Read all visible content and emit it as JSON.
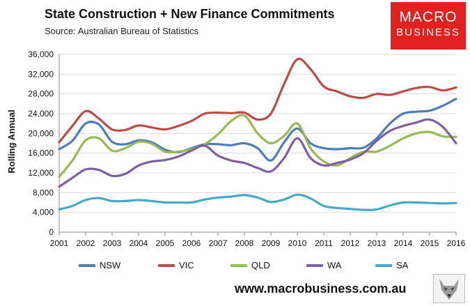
{
  "header": {
    "title": "State Construction + New Finance Commitments",
    "subtitle": "Source: Australian Bureau of Statistics"
  },
  "logo": {
    "line1": "MACRO",
    "line2": "BUSINESS"
  },
  "footer": {
    "website": "www.macrobusiness.com.au"
  },
  "colors": {
    "NSW": "#4a7ebb",
    "VIC": "#be4b48",
    "QLD": "#98b954",
    "WA": "#7d60a0",
    "SA": "#46aac5",
    "logo_bg": "#e0211d"
  },
  "chart_data": {
    "type": "line",
    "title": "State Construction + New Finance Commitments",
    "ylabel": "Rolling Annual",
    "xlabel": "",
    "xlim": [
      2001,
      2016
    ],
    "ylim": [
      0,
      36000
    ],
    "x_ticks": [
      "2001",
      "2002",
      "2003",
      "2004",
      "2005",
      "2006",
      "2007",
      "2008",
      "2009",
      "2010",
      "2011",
      "2012",
      "2013",
      "2014",
      "2015",
      "2016"
    ],
    "y_ticks": [
      "0",
      "4,000",
      "8,000",
      "12,000",
      "16,000",
      "20,000",
      "24,000",
      "28,000",
      "32,000",
      "36,000"
    ],
    "grid": "horizontal",
    "legend": "bottom",
    "x": [
      2001.0,
      2001.5,
      2002.0,
      2002.5,
      2003.0,
      2003.5,
      2004.0,
      2004.5,
      2005.0,
      2005.5,
      2006.0,
      2006.5,
      2007.0,
      2007.5,
      2008.0,
      2008.5,
      2009.0,
      2009.5,
      2010.0,
      2010.5,
      2011.0,
      2011.5,
      2012.0,
      2012.5,
      2013.0,
      2013.5,
      2014.0,
      2014.5,
      2015.0,
      2015.5,
      2016.0
    ],
    "series": [
      {
        "name": "NSW",
        "values": [
          16800,
          18500,
          22000,
          21800,
          18300,
          17800,
          18600,
          18200,
          16700,
          16200,
          17000,
          17800,
          17800,
          17600,
          18000,
          17000,
          14500,
          18200,
          21000,
          18000,
          17000,
          16800,
          17000,
          17100,
          19000,
          22000,
          24000,
          24400,
          24600,
          25600,
          27000
        ]
      },
      {
        "name": "VIC",
        "values": [
          18200,
          21500,
          24500,
          23000,
          20800,
          20700,
          21600,
          21200,
          20800,
          21500,
          22500,
          24000,
          24200,
          24100,
          24200,
          22800,
          24000,
          30000,
          35000,
          33000,
          29500,
          28500,
          27500,
          27200,
          28000,
          27800,
          28500,
          29200,
          29400,
          28700,
          29300
        ]
      },
      {
        "name": "QLD",
        "values": [
          11200,
          14500,
          18600,
          19000,
          16500,
          17000,
          18300,
          17900,
          16300,
          16300,
          16800,
          17800,
          19800,
          22500,
          23600,
          20000,
          18000,
          19500,
          22000,
          17000,
          14300,
          13500,
          15000,
          16300,
          16300,
          17500,
          19000,
          20000,
          20300,
          19400,
          19300
        ]
      },
      {
        "name": "WA",
        "values": [
          9200,
          11000,
          12700,
          12600,
          11400,
          11800,
          13500,
          14300,
          14600,
          15300,
          16500,
          17500,
          15500,
          14500,
          14000,
          13000,
          12300,
          15000,
          19000,
          15000,
          13500,
          14000,
          14700,
          16000,
          18500,
          20500,
          21500,
          22200,
          22800,
          21300,
          18000
        ]
      },
      {
        "name": "SA",
        "values": [
          4600,
          5300,
          6500,
          6900,
          6300,
          6300,
          6500,
          6300,
          6000,
          6000,
          6000,
          6600,
          7000,
          7200,
          7500,
          7000,
          6100,
          6600,
          7600,
          6800,
          5300,
          4900,
          4700,
          4500,
          4600,
          5400,
          6000,
          6000,
          5900,
          5800,
          5900
        ]
      }
    ]
  }
}
